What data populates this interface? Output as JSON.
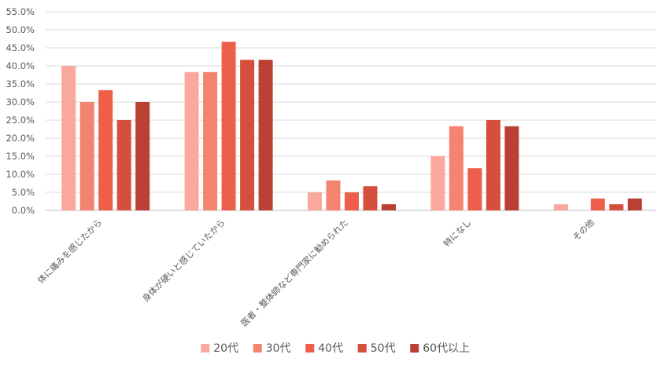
{
  "chart_data": {
    "type": "bar",
    "categories": [
      "体に痛みを感じたから",
      "身体が硬いと感じていたから",
      "医者・整体師など専門家に勧められた",
      "特になし",
      "その他"
    ],
    "series": [
      {
        "name": "20代",
        "color": "#FAA89E",
        "values": [
          40.0,
          38.3,
          5.0,
          15.0,
          1.7
        ]
      },
      {
        "name": "30代",
        "color": "#F4836F",
        "values": [
          30.0,
          38.3,
          8.3,
          23.3,
          0.0
        ]
      },
      {
        "name": "40代",
        "color": "#EE5F4B",
        "values": [
          33.3,
          46.7,
          5.0,
          11.7,
          3.3
        ]
      },
      {
        "name": "50代",
        "color": "#D64F3D",
        "values": [
          25.0,
          41.7,
          6.7,
          25.0,
          1.7
        ]
      },
      {
        "name": "60代以上",
        "color": "#B94033",
        "values": [
          30.0,
          41.7,
          1.7,
          23.3,
          3.3
        ]
      }
    ],
    "ylim": [
      0,
      55
    ],
    "yticks": [
      "0.0%",
      "5.0%",
      "10.0%",
      "15.0%",
      "20.0%",
      "25.0%",
      "30.0%",
      "35.0%",
      "40.0%",
      "45.0%",
      "50.0%",
      "55.0%"
    ],
    "grid": true,
    "legend_position": "bottom",
    "title": "",
    "xlabel": "",
    "ylabel": ""
  }
}
